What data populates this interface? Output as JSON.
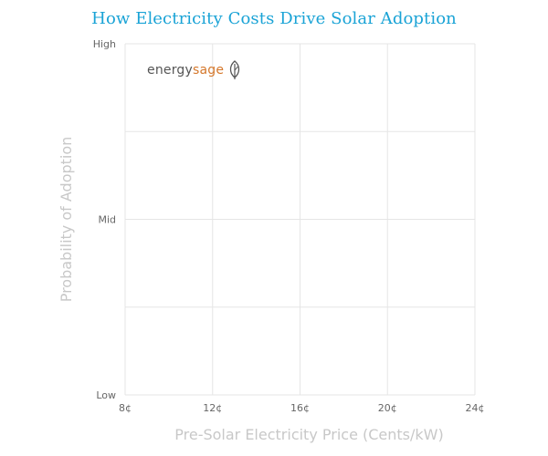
{
  "chart_data": {
    "type": "scatter",
    "title": "How Electricity Costs Drive Solar Adoption",
    "xlabel": "Pre-Solar Electricity Price (Cents/kW)",
    "ylabel": "Probability of Adoption",
    "x_ticks": [
      "8¢",
      "12¢",
      "16¢",
      "20¢",
      "24¢"
    ],
    "x_tick_values": [
      8,
      12,
      16,
      20,
      24
    ],
    "xlim": [
      8,
      24
    ],
    "y_ticks": [
      "Low",
      "Mid",
      "High"
    ],
    "y_tick_values": [
      0,
      0.5,
      1
    ],
    "ylim": [
      0,
      1
    ],
    "grid": true,
    "series": []
  },
  "branding": {
    "logo_word_1": "energy",
    "logo_word_2": "sage",
    "logo_icon": "leaf-icon",
    "colors": {
      "title": "#1aa3d6",
      "logo_primary": "#555555",
      "logo_accent": "#d5782c",
      "axis_label": "#c8c8c8",
      "tick_label": "#666666",
      "grid": "#e5e5e5"
    }
  }
}
